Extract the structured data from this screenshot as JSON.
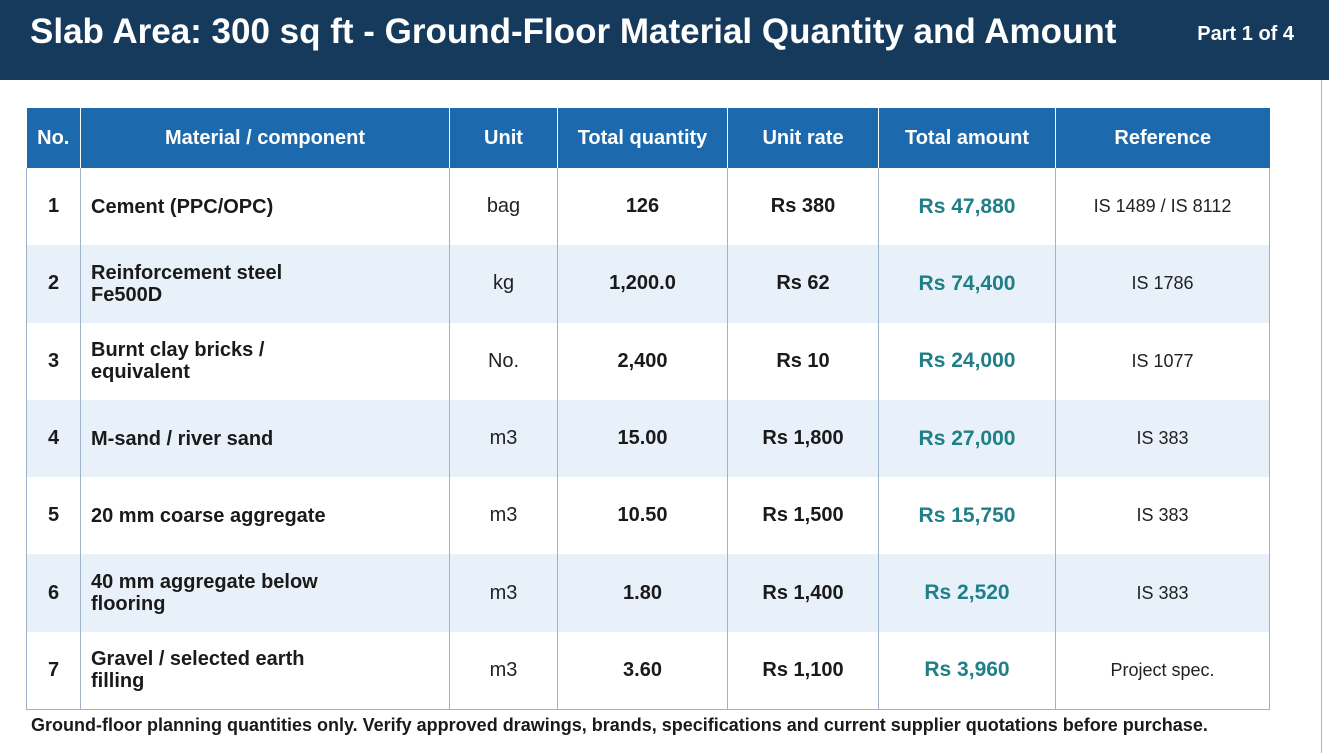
{
  "header": {
    "title": "Slab Area: 300 sq ft - Ground-Floor Material Quantity and Amount",
    "part": "Part 1 of 4"
  },
  "table": {
    "columns": [
      "No.",
      "Material / component",
      "Unit",
      "Total quantity",
      "Unit rate",
      "Total amount",
      "Reference"
    ],
    "rows": [
      {
        "no": "1",
        "material": "Cement (PPC/OPC)",
        "unit": "bag",
        "quantity": "126",
        "rate": "Rs 380",
        "amount": "Rs 47,880",
        "reference": "IS 1489 / IS 8112"
      },
      {
        "no": "2",
        "material": "Reinforcement steel Fe500D",
        "unit": "kg",
        "quantity": "1,200.0",
        "rate": "Rs 62",
        "amount": "Rs 74,400",
        "reference": "IS 1786"
      },
      {
        "no": "3",
        "material": "Burnt clay bricks / equivalent",
        "unit": "No.",
        "quantity": "2,400",
        "rate": "Rs 10",
        "amount": "Rs 24,000",
        "reference": "IS 1077"
      },
      {
        "no": "4",
        "material": "M-sand / river sand",
        "unit": "m3",
        "quantity": "15.00",
        "rate": "Rs 1,800",
        "amount": "Rs 27,000",
        "reference": "IS 383"
      },
      {
        "no": "5",
        "material": "20 mm coarse aggregate",
        "unit": "m3",
        "quantity": "10.50",
        "rate": "Rs 1,500",
        "amount": "Rs 15,750",
        "reference": "IS 383"
      },
      {
        "no": "6",
        "material": "40 mm aggregate below flooring",
        "unit": "m3",
        "quantity": "1.80",
        "rate": "Rs 1,400",
        "amount": "Rs 2,520",
        "reference": "IS 383"
      },
      {
        "no": "7",
        "material": "Gravel / selected earth filling",
        "unit": "m3",
        "quantity": "3.60",
        "rate": "Rs 1,100",
        "amount": "Rs 3,960",
        "reference": "Project spec."
      }
    ]
  },
  "footnote": "Ground-floor planning quantities only. Verify approved drawings, brands, specifications and current supplier quotations before purchase.",
  "colors": {
    "header_bg": "#163a5c",
    "table_header_bg": "#1c6aad",
    "amount_text": "#1f7f86",
    "stripe": "#e8f1f9"
  }
}
